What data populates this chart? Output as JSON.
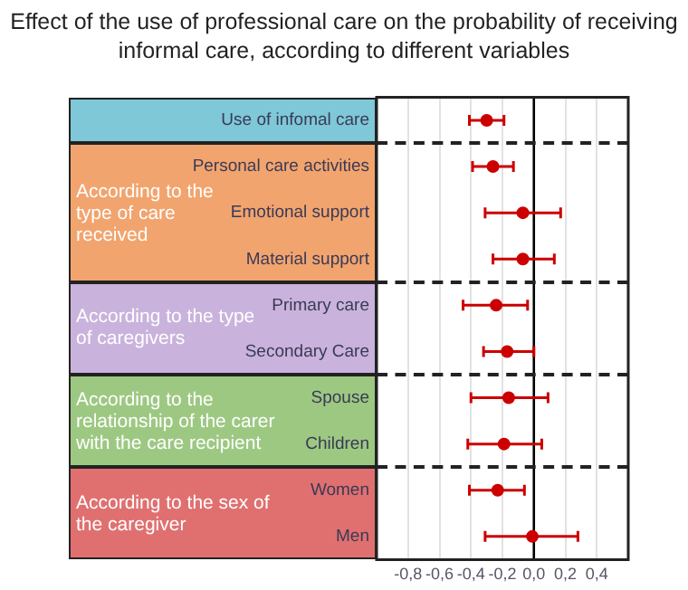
{
  "chart_data": {
    "type": "scatter",
    "title": "Effect of the use of professional care on the probability of receiving informal care, according to different variables",
    "orientation": "horizontal",
    "categories": [
      "Use of infomal care",
      "Personal care activities",
      "Emotional support",
      "Material support",
      "Primary care",
      "Secondary Care",
      "Spouse",
      "Children",
      "Women",
      "Men"
    ],
    "values": [
      -0.3,
      -0.26,
      -0.07,
      -0.07,
      -0.24,
      -0.17,
      -0.16,
      -0.19,
      -0.23,
      -0.01
    ],
    "errors": [
      [
        -0.41,
        -0.19
      ],
      [
        -0.39,
        -0.13
      ],
      [
        -0.31,
        0.17
      ],
      [
        -0.26,
        0.13
      ],
      [
        -0.45,
        -0.04
      ],
      [
        -0.32,
        0.0
      ],
      [
        -0.4,
        0.09
      ],
      [
        -0.42,
        0.05
      ],
      [
        -0.41,
        -0.06
      ],
      [
        -0.31,
        0.28
      ]
    ],
    "color": "#cc0000",
    "marker": "circle",
    "annotations": [
      "According to the type of care received",
      "According to the type of caregivers",
      "According to the relationship of the carer with the care recipient",
      "According to the sex of the caregiver"
    ],
    "xlim": [
      -1.0,
      0.6
    ],
    "xticks": [
      {
        "value": -0.8,
        "label": "-0,8"
      },
      {
        "value": -0.6,
        "label": "-0,6"
      },
      {
        "value": -0.4,
        "label": "-0,4"
      },
      {
        "value": -0.2,
        "label": "-0,2"
      },
      {
        "value": 0,
        "label": "0,0"
      },
      {
        "value": 0.2,
        "label": "0,2"
      },
      {
        "value": 0.4,
        "label": "0,4"
      }
    ],
    "ref_lines": [
      {
        "axis": "x",
        "value": 0,
        "color": "#000000"
      }
    ],
    "grid": "x",
    "legend": false
  }
}
